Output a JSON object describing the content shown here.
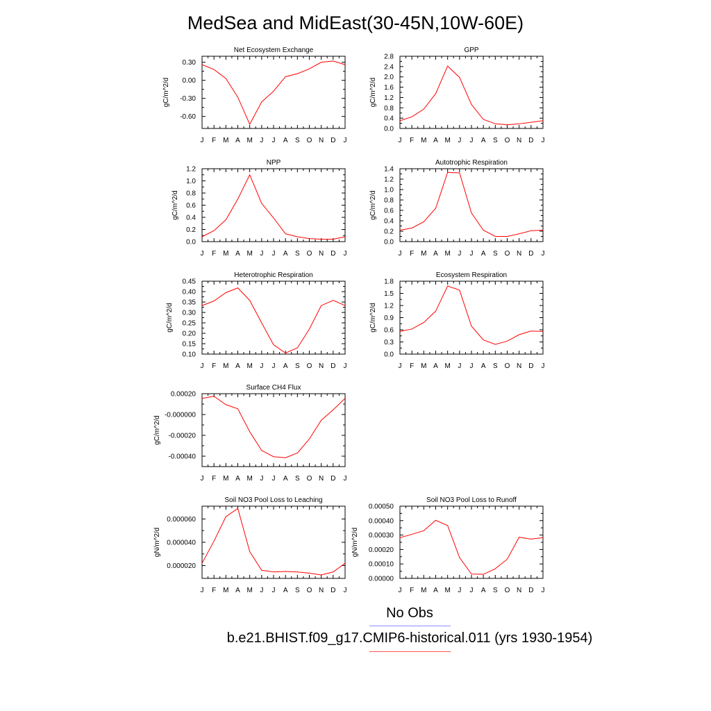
{
  "title": "MedSea and MidEast(30-45N,10W-60E)",
  "legend": {
    "obs_label": "No Obs",
    "obs_color": "#8a8aff",
    "model_label": "b.e21.BHIST.f09_g17.CMIP6-historical.011 (yrs 1930-1954)",
    "model_color": "#ff0000"
  },
  "chart_data": [
    {
      "type": "line",
      "title": "Net Ecosystem Exchange",
      "ylabel": "gC/m^2/d",
      "categories": [
        "J",
        "F",
        "M",
        "A",
        "M",
        "J",
        "J",
        "A",
        "S",
        "O",
        "N",
        "D",
        "J"
      ],
      "ylim": [
        -0.8,
        0.4
      ],
      "yticks": [
        -0.6,
        -0.3,
        0.0,
        0.3
      ],
      "ytick_labels": [
        "-0.60",
        "-0.30",
        "0.00",
        "0.30"
      ],
      "series": [
        {
          "values": [
            0.26,
            0.18,
            0.03,
            -0.28,
            -0.73,
            -0.36,
            -0.18,
            0.06,
            0.11,
            0.19,
            0.3,
            0.32,
            0.26
          ]
        }
      ]
    },
    {
      "type": "line",
      "title": "GPP",
      "ylabel": "gC/m^2/d",
      "categories": [
        "J",
        "F",
        "M",
        "A",
        "M",
        "J",
        "J",
        "A",
        "S",
        "O",
        "N",
        "D",
        "J"
      ],
      "ylim": [
        0,
        2.8
      ],
      "yticks": [
        0,
        0.4,
        0.8,
        1.2,
        1.6,
        2.0,
        2.4,
        2.8
      ],
      "ytick_labels": [
        "0.0",
        "0.4",
        "0.8",
        "1.2",
        "1.6",
        "2.0",
        "2.4",
        "2.8"
      ],
      "series": [
        {
          "values": [
            0.3,
            0.45,
            0.75,
            1.35,
            2.42,
            1.98,
            0.93,
            0.35,
            0.18,
            0.14,
            0.18,
            0.24,
            0.3
          ]
        }
      ]
    },
    {
      "type": "line",
      "title": "NPP",
      "ylabel": "gC/m^2/d",
      "categories": [
        "J",
        "F",
        "M",
        "A",
        "M",
        "J",
        "J",
        "A",
        "S",
        "O",
        "N",
        "D",
        "J"
      ],
      "ylim": [
        0,
        1.2
      ],
      "yticks": [
        0,
        0.2,
        0.4,
        0.6,
        0.8,
        1.0,
        1.2
      ],
      "ytick_labels": [
        "0.0",
        "0.2",
        "0.4",
        "0.6",
        "0.8",
        "1.0",
        "1.2"
      ],
      "series": [
        {
          "values": [
            0.08,
            0.18,
            0.36,
            0.7,
            1.1,
            0.63,
            0.39,
            0.13,
            0.08,
            0.05,
            0.04,
            0.04,
            0.08
          ]
        }
      ]
    },
    {
      "type": "line",
      "title": "Autotrophic Respiration",
      "ylabel": "gC/m^2/d",
      "categories": [
        "J",
        "F",
        "M",
        "A",
        "M",
        "J",
        "J",
        "A",
        "S",
        "O",
        "N",
        "D",
        "J"
      ],
      "ylim": [
        0,
        1.4
      ],
      "yticks": [
        0,
        0.2,
        0.4,
        0.6,
        0.8,
        1.0,
        1.2,
        1.4
      ],
      "ytick_labels": [
        "0.0",
        "0.2",
        "0.4",
        "0.6",
        "0.8",
        "1.0",
        "1.2",
        "1.4"
      ],
      "series": [
        {
          "values": [
            0.22,
            0.26,
            0.38,
            0.64,
            1.33,
            1.32,
            0.55,
            0.22,
            0.1,
            0.1,
            0.15,
            0.21,
            0.22
          ]
        }
      ]
    },
    {
      "type": "line",
      "title": "Heterotrophic Respiration",
      "ylabel": "gC/m^2/d",
      "categories": [
        "J",
        "F",
        "M",
        "A",
        "M",
        "J",
        "J",
        "A",
        "S",
        "O",
        "N",
        "D",
        "J"
      ],
      "ylim": [
        0.1,
        0.45
      ],
      "yticks": [
        0.1,
        0.15,
        0.2,
        0.25,
        0.3,
        0.35,
        0.4,
        0.45
      ],
      "ytick_labels": [
        "0.10",
        "0.15",
        "0.20",
        "0.25",
        "0.30",
        "0.35",
        "0.40",
        "0.45"
      ],
      "series": [
        {
          "values": [
            0.333,
            0.355,
            0.395,
            0.418,
            0.358,
            0.25,
            0.145,
            0.105,
            0.13,
            0.22,
            0.333,
            0.358,
            0.333
          ]
        }
      ]
    },
    {
      "type": "line",
      "title": "Ecosystem Respiration",
      "ylabel": "gC/m^2/d",
      "categories": [
        "J",
        "F",
        "M",
        "A",
        "M",
        "J",
        "J",
        "A",
        "S",
        "O",
        "N",
        "D",
        "J"
      ],
      "ylim": [
        0,
        1.8
      ],
      "yticks": [
        0,
        0.3,
        0.6,
        0.9,
        1.2,
        1.5,
        1.8
      ],
      "ytick_labels": [
        "0.0",
        "0.3",
        "0.6",
        "0.9",
        "1.2",
        "1.5",
        "1.8"
      ],
      "series": [
        {
          "values": [
            0.56,
            0.62,
            0.78,
            1.06,
            1.68,
            1.58,
            0.69,
            0.35,
            0.24,
            0.32,
            0.48,
            0.57,
            0.56
          ]
        }
      ]
    },
    {
      "type": "line",
      "title": "Surface CH4 Flux",
      "ylabel": "gC/m^2/d",
      "categories": [
        "J",
        "F",
        "M",
        "A",
        "M",
        "J",
        "J",
        "A",
        "S",
        "O",
        "N",
        "D",
        "J"
      ],
      "ylim": [
        -0.0005,
        0.0002
      ],
      "yticks": [
        -0.0004,
        -0.0002,
        0.0,
        0.0002
      ],
      "ytick_labels": [
        "-0.00040",
        "-0.00020",
        "-0.000000",
        "0.00020"
      ],
      "series": [
        {
          "values": [
            0.000155,
            0.000175,
            9.5e-05,
            5.5e-05,
            -0.000165,
            -0.000345,
            -0.000405,
            -0.000415,
            -0.00037,
            -0.000235,
            -5.5e-05,
            4.5e-05,
            0.000155
          ]
        }
      ]
    },
    {
      "type": "line",
      "title": "Soil NO3 Pool Loss to Leaching",
      "ylabel": "gN/m^2/d",
      "categories": [
        "J",
        "F",
        "M",
        "A",
        "M",
        "J",
        "J",
        "A",
        "S",
        "O",
        "N",
        "D",
        "J"
      ],
      "ylim": [
        9e-06,
        7.1e-05
      ],
      "yticks": [
        2e-05,
        4e-05,
        6e-05
      ],
      "ytick_labels": [
        "0.000020",
        "0.000040",
        "0.000060"
      ],
      "series": [
        {
          "values": [
            2.2e-05,
            4.1e-05,
            6.2e-05,
            6.9e-05,
            3.2e-05,
            1.6e-05,
            1.45e-05,
            1.5e-05,
            1.45e-05,
            1.35e-05,
            1.2e-05,
            1.45e-05,
            2.2e-05
          ]
        }
      ]
    },
    {
      "type": "line",
      "title": "Soil NO3 Pool Loss to Runoff",
      "ylabel": "gN/m^2/d",
      "categories": [
        "J",
        "F",
        "M",
        "A",
        "M",
        "J",
        "J",
        "A",
        "S",
        "O",
        "N",
        "D",
        "J"
      ],
      "ylim": [
        0,
        0.0005
      ],
      "yticks": [
        0,
        0.0001,
        0.0002,
        0.0003,
        0.0004,
        0.0005
      ],
      "ytick_labels": [
        "0.00000",
        "0.00010",
        "0.00020",
        "0.00030",
        "0.00040",
        "0.00050"
      ],
      "series": [
        {
          "values": [
            0.000282,
            0.000305,
            0.00033,
            0.000402,
            0.000366,
            0.000144,
            3e-05,
            2.8e-05,
            6.7e-05,
            0.000133,
            0.000285,
            0.000272,
            0.000282
          ]
        }
      ]
    }
  ]
}
